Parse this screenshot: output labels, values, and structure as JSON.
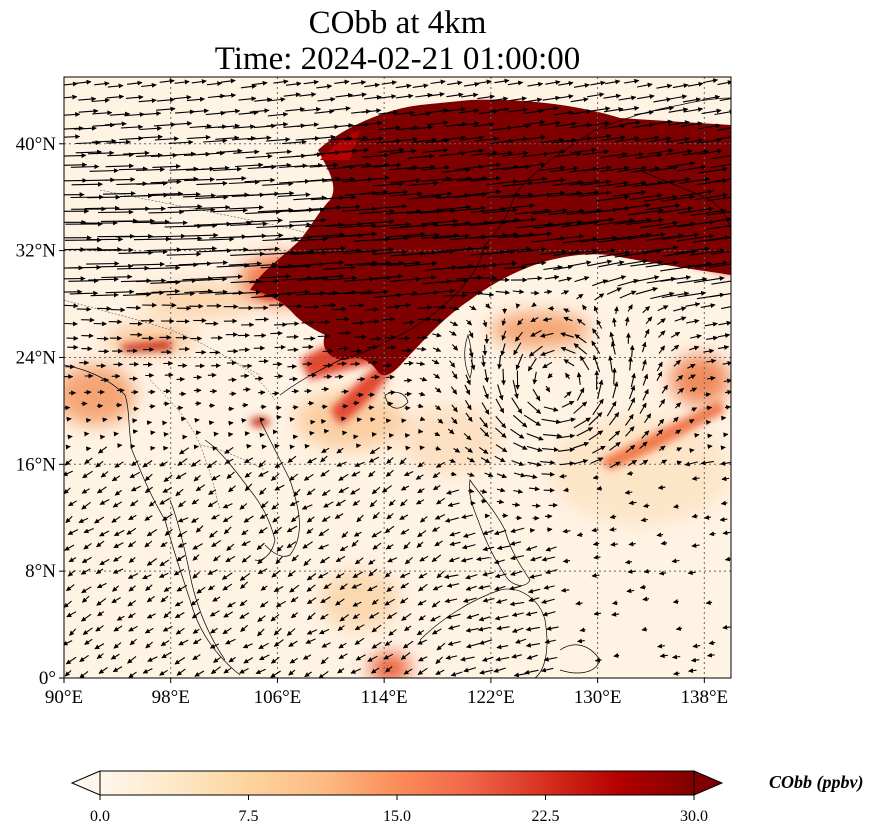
{
  "title": {
    "line1": "CObb at 4km",
    "line2": "Time: 2024-02-21 01:00:00"
  },
  "map": {
    "extent_lon": [
      90,
      140
    ],
    "extent_lat": [
      0,
      45
    ],
    "lon_ticks": [
      {
        "value": 90,
        "label": "90°E"
      },
      {
        "value": 98,
        "label": "98°E"
      },
      {
        "value": 106,
        "label": "106°E"
      },
      {
        "value": 114,
        "label": "114°E"
      },
      {
        "value": 122,
        "label": "122°E"
      },
      {
        "value": 130,
        "label": "130°E"
      },
      {
        "value": 138,
        "label": "138°E"
      }
    ],
    "lat_ticks": [
      {
        "value": 0,
        "label": "0°"
      },
      {
        "value": 8,
        "label": "8°N"
      },
      {
        "value": 16,
        "label": "16°N"
      },
      {
        "value": 24,
        "label": "24°N"
      },
      {
        "value": 32,
        "label": "32°N"
      },
      {
        "value": 40,
        "label": "40°N"
      }
    ],
    "gridlines": true,
    "wind_vectors": true,
    "cyclonic_center": {
      "lon": 127,
      "lat": 22
    },
    "plume_color": "#7f0000"
  },
  "colorbar": {
    "title": "CObb (ppbv)",
    "min": 0,
    "max": 30,
    "extend": "both",
    "ticks": [
      {
        "value": 0,
        "label": "0.0"
      },
      {
        "value": 7.5,
        "label": "7.5"
      },
      {
        "value": 15,
        "label": "15.0"
      },
      {
        "value": 22.5,
        "label": "22.5"
      },
      {
        "value": 30,
        "label": "30.0"
      }
    ],
    "colormap": [
      "#fff7ec",
      "#fee8c8",
      "#fdd49e",
      "#fdbb84",
      "#fc8d59",
      "#ef6548",
      "#d7301f",
      "#b30000",
      "#7f0000"
    ]
  }
}
